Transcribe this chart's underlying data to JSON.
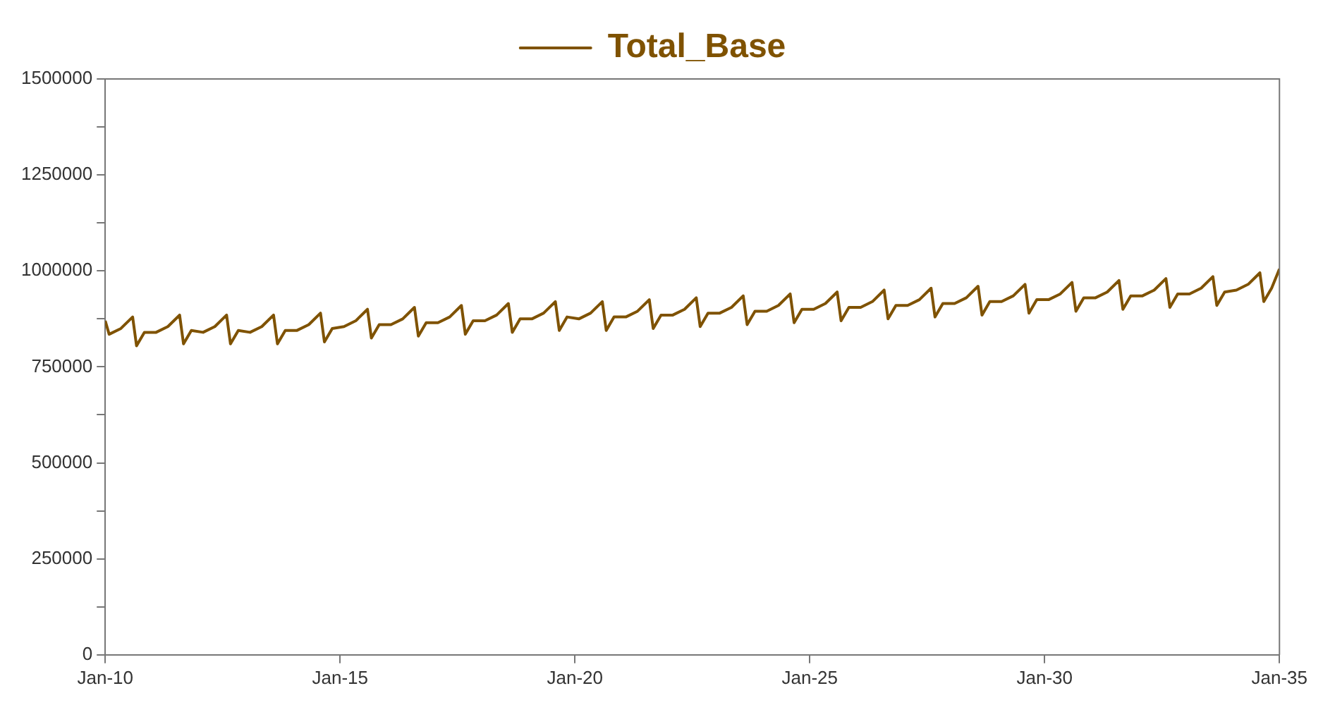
{
  "chart_data": {
    "type": "line",
    "x": [
      "2010-01",
      "2010-02",
      "2010-05",
      "2010-08",
      "2010-09",
      "2010-11",
      "2011-02",
      "2011-05",
      "2011-08",
      "2011-09",
      "2011-11",
      "2012-02",
      "2012-05",
      "2012-08",
      "2012-09",
      "2012-11",
      "2013-02",
      "2013-05",
      "2013-08",
      "2013-09",
      "2013-11",
      "2014-02",
      "2014-05",
      "2014-08",
      "2014-09",
      "2014-11",
      "2015-02",
      "2015-05",
      "2015-08",
      "2015-09",
      "2015-11",
      "2016-02",
      "2016-05",
      "2016-08",
      "2016-09",
      "2016-11",
      "2017-02",
      "2017-05",
      "2017-08",
      "2017-09",
      "2017-11",
      "2018-02",
      "2018-05",
      "2018-08",
      "2018-09",
      "2018-11",
      "2019-02",
      "2019-05",
      "2019-08",
      "2019-09",
      "2019-11",
      "2020-02",
      "2020-05",
      "2020-08",
      "2020-09",
      "2020-11",
      "2021-02",
      "2021-05",
      "2021-08",
      "2021-09",
      "2021-11",
      "2022-02",
      "2022-05",
      "2022-08",
      "2022-09",
      "2022-11",
      "2023-02",
      "2023-05",
      "2023-08",
      "2023-09",
      "2023-11",
      "2024-02",
      "2024-05",
      "2024-08",
      "2024-09",
      "2024-11",
      "2025-02",
      "2025-05",
      "2025-08",
      "2025-09",
      "2025-11",
      "2026-02",
      "2026-05",
      "2026-08",
      "2026-09",
      "2026-11",
      "2027-02",
      "2027-05",
      "2027-08",
      "2027-09",
      "2027-11",
      "2028-02",
      "2028-05",
      "2028-08",
      "2028-09",
      "2028-11",
      "2029-02",
      "2029-05",
      "2029-08",
      "2029-09",
      "2029-11",
      "2030-02",
      "2030-05",
      "2030-08",
      "2030-09",
      "2030-11",
      "2031-02",
      "2031-05",
      "2031-08",
      "2031-09",
      "2031-11",
      "2032-02",
      "2032-05",
      "2032-08",
      "2032-09",
      "2032-11",
      "2033-02",
      "2033-05",
      "2033-08",
      "2033-09",
      "2033-11",
      "2034-02",
      "2034-05",
      "2034-08",
      "2034-09",
      "2034-11",
      "2035-01"
    ],
    "series": [
      {
        "name": "Total_Base",
        "color": "#7f5200",
        "values": [
          870000,
          835000,
          850000,
          880000,
          805000,
          840000,
          840000,
          855000,
          885000,
          810000,
          845000,
          840000,
          855000,
          885000,
          810000,
          845000,
          840000,
          855000,
          885000,
          810000,
          845000,
          845000,
          860000,
          890000,
          815000,
          850000,
          855000,
          870000,
          900000,
          825000,
          860000,
          860000,
          875000,
          905000,
          830000,
          865000,
          865000,
          880000,
          910000,
          835000,
          870000,
          870000,
          885000,
          915000,
          840000,
          875000,
          875000,
          890000,
          920000,
          845000,
          880000,
          875000,
          890000,
          920000,
          845000,
          880000,
          880000,
          895000,
          925000,
          850000,
          885000,
          885000,
          900000,
          930000,
          855000,
          890000,
          890000,
          905000,
          935000,
          860000,
          895000,
          895000,
          910000,
          940000,
          865000,
          900000,
          900000,
          915000,
          945000,
          870000,
          905000,
          905000,
          920000,
          950000,
          875000,
          910000,
          910000,
          925000,
          955000,
          880000,
          915000,
          915000,
          930000,
          960000,
          885000,
          920000,
          920000,
          935000,
          965000,
          890000,
          925000,
          925000,
          940000,
          970000,
          895000,
          930000,
          930000,
          945000,
          975000,
          900000,
          935000,
          935000,
          950000,
          980000,
          905000,
          940000,
          940000,
          955000,
          985000,
          910000,
          945000,
          950000,
          965000,
          995000,
          920000,
          955000,
          1005000
        ]
      }
    ],
    "xlim": [
      "2010-01",
      "2035-01"
    ],
    "xticks": [
      {
        "value": "2010-01",
        "label": "Jan-10"
      },
      {
        "value": "2015-01",
        "label": "Jan-15"
      },
      {
        "value": "2020-01",
        "label": "Jan-20"
      },
      {
        "value": "2025-01",
        "label": "Jan-25"
      },
      {
        "value": "2030-01",
        "label": "Jan-30"
      },
      {
        "value": "2035-01",
        "label": "Jan-35"
      }
    ],
    "ylim": [
      0,
      1500000
    ],
    "yticks": [
      0,
      {
        "value": 125000,
        "label": null
      },
      250000,
      {
        "value": 375000,
        "label": null
      },
      500000,
      {
        "value": 625000,
        "label": null
      },
      750000,
      {
        "value": 875000,
        "label": null
      },
      1000000,
      {
        "value": 1125000,
        "label": null
      },
      1250000,
      {
        "value": 1375000,
        "label": null
      },
      1500000
    ],
    "grid": false,
    "legend": "top",
    "marker": "none",
    "line_style": "solid"
  }
}
